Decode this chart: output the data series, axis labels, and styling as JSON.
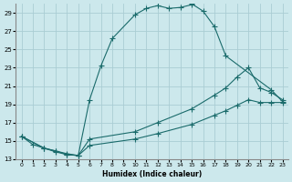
{
  "xlabel": "Humidex (Indice chaleur)",
  "bg_color": "#cce8ec",
  "grid_color": "#aacdd4",
  "line_color": "#1a6b6b",
  "xlim": [
    -0.5,
    23.5
  ],
  "ylim": [
    13,
    30
  ],
  "xticks": [
    0,
    1,
    2,
    3,
    4,
    5,
    6,
    7,
    8,
    9,
    10,
    11,
    12,
    13,
    14,
    15,
    16,
    17,
    18,
    19,
    20,
    21,
    22,
    23
  ],
  "yticks": [
    13,
    15,
    17,
    19,
    21,
    23,
    25,
    27,
    29
  ],
  "curve1_x": [
    0,
    1,
    2,
    3,
    4,
    5,
    6,
    7,
    8,
    10,
    11,
    12,
    13,
    14,
    15,
    15,
    16,
    17,
    18,
    22,
    23
  ],
  "curve1_y": [
    15.5,
    14.6,
    14.2,
    13.8,
    13.5,
    13.4,
    19.5,
    23.2,
    26.2,
    28.8,
    29.5,
    29.8,
    29.5,
    29.6,
    29.9,
    30.0,
    29.2,
    27.5,
    24.3,
    20.6,
    19.3
  ],
  "curve2_x": [
    0,
    2,
    3,
    4,
    5,
    6,
    10,
    12,
    15,
    17,
    18,
    19,
    20,
    21,
    22,
    23
  ],
  "curve2_y": [
    15.5,
    14.2,
    13.9,
    13.6,
    13.4,
    15.2,
    16.0,
    17.0,
    18.5,
    20.0,
    20.8,
    22.0,
    23.0,
    20.8,
    20.3,
    19.5
  ],
  "curve3_x": [
    0,
    2,
    3,
    4,
    5,
    6,
    10,
    12,
    15,
    17,
    18,
    19,
    20,
    21,
    22,
    23
  ],
  "curve3_y": [
    15.5,
    14.2,
    13.9,
    13.5,
    13.4,
    14.5,
    15.2,
    15.8,
    16.8,
    17.8,
    18.3,
    18.9,
    19.5,
    19.2,
    19.2,
    19.2
  ]
}
